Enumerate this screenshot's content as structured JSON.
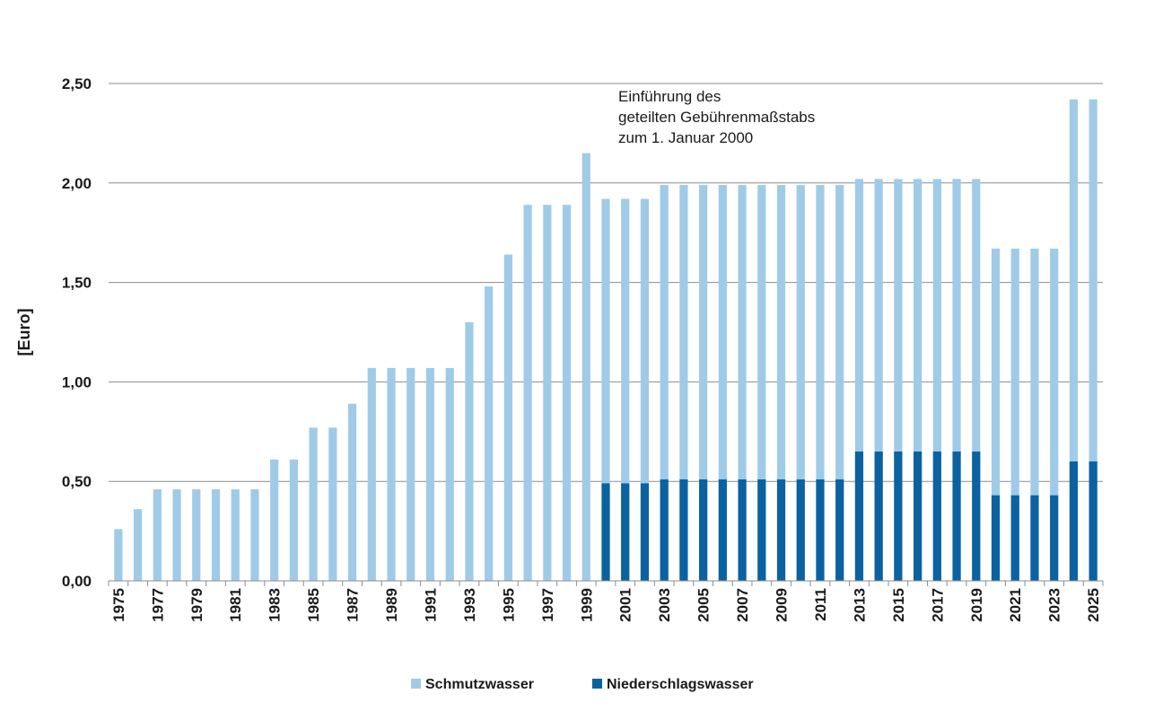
{
  "chart_data": {
    "type": "bar",
    "ylabel": "[Euro]",
    "ylim": [
      0,
      2.5
    ],
    "yticks": [
      "0,00",
      "0,50",
      "1,00",
      "1,50",
      "2,00",
      "2,50"
    ],
    "grid": true,
    "legend_position": "bottom",
    "categories": [
      "1975",
      "1976",
      "1977",
      "1978",
      "1979",
      "1980",
      "1981",
      "1982",
      "1983",
      "1984",
      "1985",
      "1986",
      "1987",
      "1988",
      "1989",
      "1990",
      "1991",
      "1992",
      "1993",
      "1994",
      "1995",
      "1996",
      "1997",
      "1998",
      "1999",
      "2000",
      "2001",
      "2002",
      "2003",
      "2004",
      "2005",
      "2006",
      "2007",
      "2008",
      "2009",
      "2010",
      "2011",
      "2012",
      "2013",
      "2014",
      "2015",
      "2016",
      "2017",
      "2018",
      "2019",
      "2020",
      "2021",
      "2022",
      "2023",
      "2024",
      "2025"
    ],
    "xtick_labels": [
      "1975",
      "1977",
      "1979",
      "1981",
      "1983",
      "1985",
      "1987",
      "1989",
      "1991",
      "1993",
      "1995",
      "1997",
      "1999",
      "2001",
      "2003",
      "2005",
      "2007",
      "2009",
      "2011",
      "2013",
      "2015",
      "2017",
      "2019",
      "2021",
      "2023",
      "2025"
    ],
    "series": [
      {
        "name": "Schmutzwasser",
        "color": "#9fcbe8",
        "values": [
          0.26,
          0.36,
          0.46,
          0.46,
          0.46,
          0.46,
          0.46,
          0.46,
          0.61,
          0.61,
          0.77,
          0.77,
          0.89,
          1.07,
          1.07,
          1.07,
          1.07,
          1.07,
          1.3,
          1.48,
          1.64,
          1.89,
          1.89,
          1.89,
          2.15,
          1.92,
          1.92,
          1.92,
          1.99,
          1.99,
          1.99,
          1.99,
          1.99,
          1.99,
          1.99,
          1.99,
          1.99,
          1.99,
          2.02,
          2.02,
          2.02,
          2.02,
          2.02,
          2.02,
          2.02,
          1.67,
          1.67,
          1.67,
          1.67,
          2.42,
          2.42
        ]
      },
      {
        "name": "Niederschlagswasser",
        "color": "#0a62a1",
        "values": [
          null,
          null,
          null,
          null,
          null,
          null,
          null,
          null,
          null,
          null,
          null,
          null,
          null,
          null,
          null,
          null,
          null,
          null,
          null,
          null,
          null,
          null,
          null,
          null,
          null,
          0.49,
          0.49,
          0.49,
          0.51,
          0.51,
          0.51,
          0.51,
          0.51,
          0.51,
          0.51,
          0.51,
          0.51,
          0.51,
          0.65,
          0.65,
          0.65,
          0.65,
          0.65,
          0.65,
          0.65,
          0.43,
          0.43,
          0.43,
          0.43,
          0.6,
          0.6
        ]
      }
    ],
    "annotation": {
      "lines": [
        "Einführung des",
        "geteilten Gebührenmaßstabs",
        "zum 1. Januar 2000"
      ]
    }
  }
}
